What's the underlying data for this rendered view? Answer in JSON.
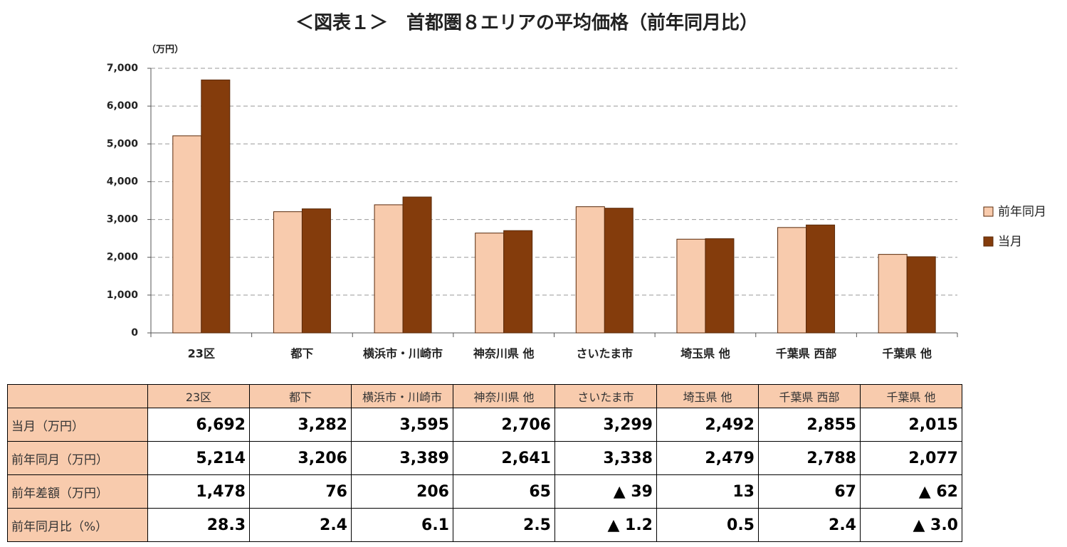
{
  "chart_data": {
    "type": "bar",
    "title": "＜図表１＞　首都圏８エリアの平均価格（前年同月比）",
    "y_label": "（万円）",
    "categories": [
      "23区",
      "都下",
      "横浜市・川崎市",
      "神奈川県 他",
      "さいたま市",
      "埼玉県 他",
      "千葉県 西部",
      "千葉県 他"
    ],
    "series": [
      {
        "name": "前年同月",
        "color": "#f8cbad",
        "values": [
          5214,
          3206,
          3389,
          2641,
          3338,
          2479,
          2788,
          2077
        ]
      },
      {
        "name": "当月",
        "color": "#843c0c",
        "values": [
          6692,
          3282,
          3595,
          2706,
          3299,
          2492,
          2855,
          2015
        ]
      }
    ],
    "ylim": [
      0,
      7000
    ],
    "yticks": [
      0,
      {
        "value": 1000,
        "label": "1,000"
      },
      {
        "value": 2000,
        "label": "2,000"
      },
      {
        "value": 3000,
        "label": "3,000"
      },
      {
        "value": 4000,
        "label": "4,000"
      },
      {
        "value": 5000,
        "label": "5,000"
      },
      {
        "value": 6000,
        "label": "6,000"
      },
      {
        "value": 7000,
        "label": "7,000"
      }
    ],
    "grid": true,
    "legend": "right"
  },
  "table": {
    "rows": [
      {
        "label": "当月（万円）",
        "cells": [
          "6,692",
          "3,282",
          "3,595",
          "2,706",
          "3,299",
          "2,492",
          "2,855",
          "2,015"
        ]
      },
      {
        "label": "前年同月（万円）",
        "cells": [
          "5,214",
          "3,206",
          "3,389",
          "2,641",
          "3,338",
          "2,479",
          "2,788",
          "2,077"
        ]
      },
      {
        "label": "前年差額（万円）",
        "cells": [
          "1,478",
          "76",
          "206",
          "65",
          "▲ 39",
          "13",
          "67",
          "▲ 62"
        ]
      },
      {
        "label": "前年同月比（%）",
        "cells": [
          "28.3",
          "2.4",
          "6.1",
          "2.5",
          "▲ 1.2",
          "0.5",
          "2.4",
          "▲ 3.0"
        ]
      }
    ]
  }
}
